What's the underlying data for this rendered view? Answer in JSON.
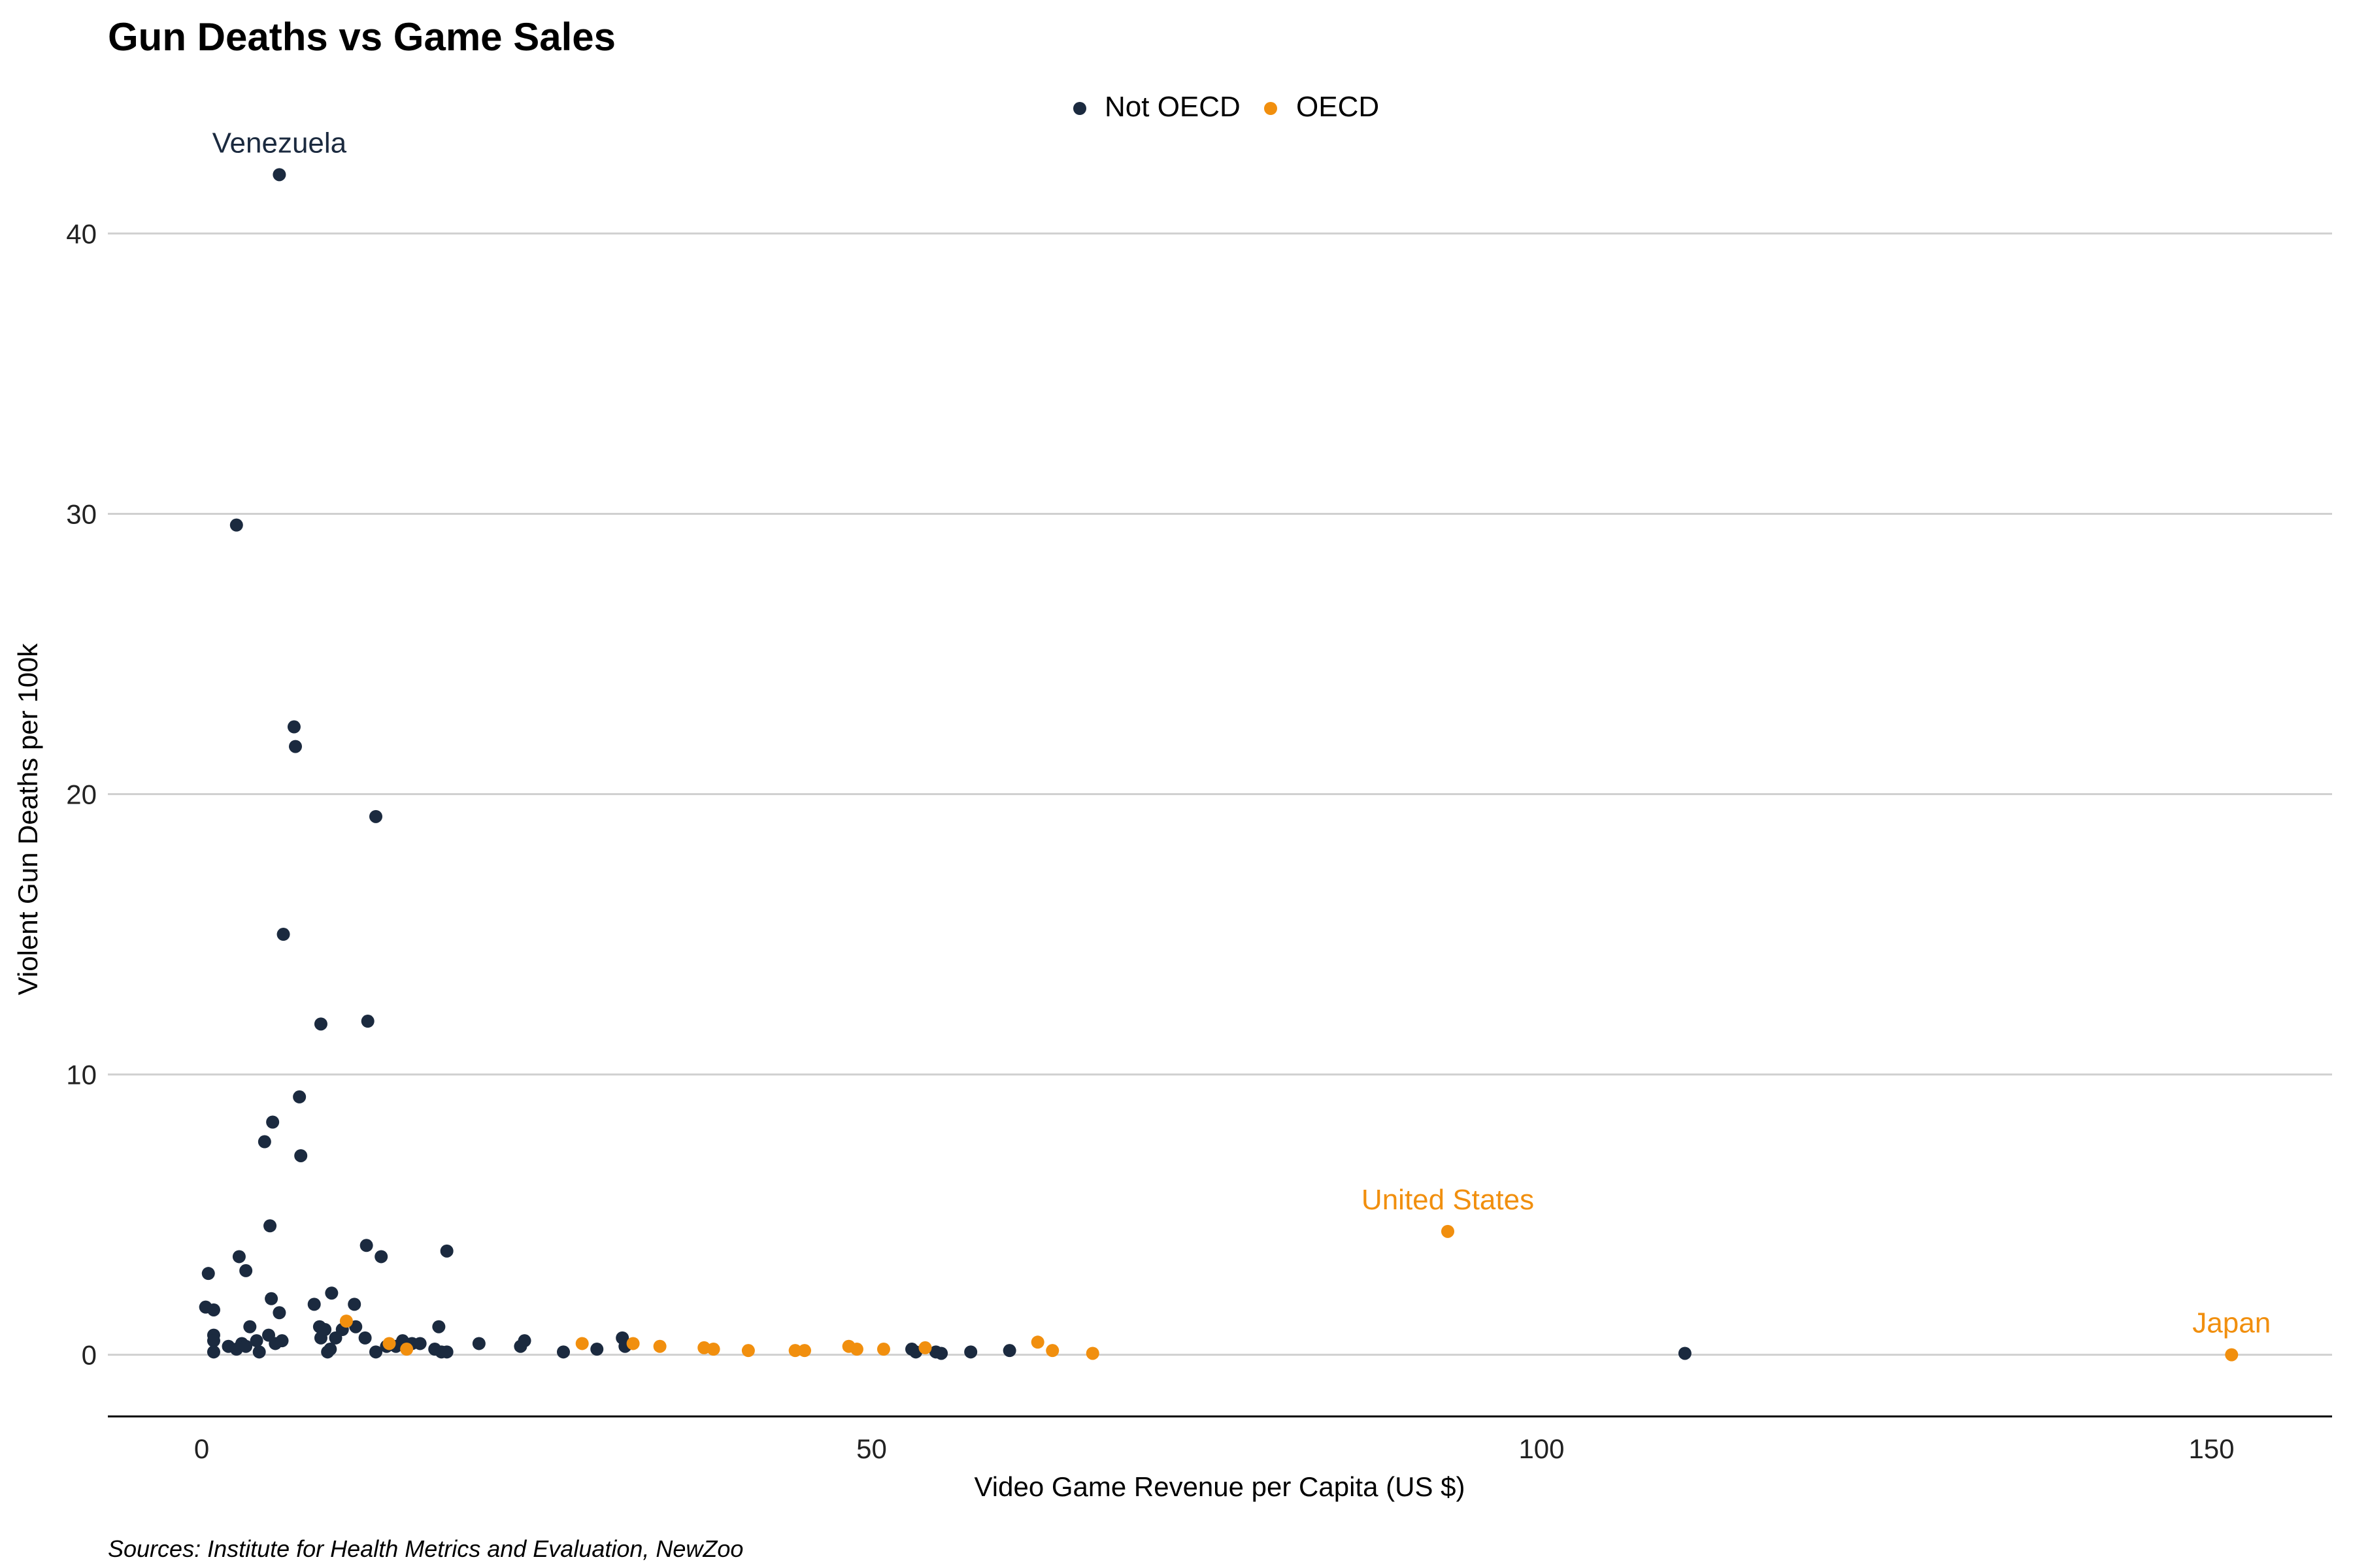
{
  "chart_data": {
    "type": "scatter",
    "title": "Gun Deaths vs Game Sales",
    "xlabel": "Video Game Revenue per Capita (US $)",
    "ylabel": "Violent Gun Deaths per 100k",
    "caption": "Sources: Institute for Health Metrics and Evaluation, NewZoo",
    "xlim": [
      -7,
      159
    ],
    "ylim": [
      -2.2,
      46
    ],
    "x_ticks": [
      0,
      50,
      100,
      150
    ],
    "y_ticks": [
      0,
      10,
      20,
      30,
      40
    ],
    "grid": "horizontal",
    "legend_position": "top",
    "colors": {
      "Not OECD": "#1b2a3f",
      "OECD": "#f18f0e"
    },
    "series": [
      {
        "name": "Not OECD",
        "points": [
          [
            5.8,
            42.1
          ],
          [
            2.6,
            29.6
          ],
          [
            6.9,
            22.4
          ],
          [
            7.0,
            21.7
          ],
          [
            13.0,
            19.2
          ],
          [
            6.1,
            15.0
          ],
          [
            8.9,
            11.8
          ],
          [
            12.4,
            11.9
          ],
          [
            7.3,
            9.2
          ],
          [
            5.3,
            8.3
          ],
          [
            4.7,
            7.6
          ],
          [
            7.4,
            7.1
          ],
          [
            5.1,
            4.6
          ],
          [
            12.3,
            3.9
          ],
          [
            13.4,
            3.5
          ],
          [
            18.3,
            3.7
          ],
          [
            2.8,
            3.5
          ],
          [
            3.3,
            3.0
          ],
          [
            0.5,
            2.9
          ],
          [
            0.3,
            1.7
          ],
          [
            0.9,
            1.6
          ],
          [
            5.2,
            2.0
          ],
          [
            5.8,
            1.5
          ],
          [
            9.7,
            2.2
          ],
          [
            11.4,
            1.8
          ],
          [
            8.4,
            1.8
          ],
          [
            0.9,
            0.7
          ],
          [
            0.9,
            0.5
          ],
          [
            0.9,
            0.1
          ],
          [
            2.0,
            0.3
          ],
          [
            2.6,
            0.2
          ],
          [
            3.0,
            0.4
          ],
          [
            3.3,
            0.3
          ],
          [
            3.6,
            1.0
          ],
          [
            4.1,
            0.5
          ],
          [
            4.3,
            0.1
          ],
          [
            5.0,
            0.7
          ],
          [
            5.5,
            0.4
          ],
          [
            6.0,
            0.5
          ],
          [
            8.8,
            1.0
          ],
          [
            8.9,
            0.6
          ],
          [
            9.2,
            0.9
          ],
          [
            9.4,
            0.1
          ],
          [
            9.6,
            0.2
          ],
          [
            10.0,
            0.6
          ],
          [
            10.5,
            0.9
          ],
          [
            11.5,
            1.0
          ],
          [
            12.2,
            0.6
          ],
          [
            13.0,
            0.1
          ],
          [
            13.8,
            0.3
          ],
          [
            14.5,
            0.3
          ],
          [
            15.0,
            0.5
          ],
          [
            15.7,
            0.4
          ],
          [
            16.3,
            0.4
          ],
          [
            17.4,
            0.2
          ],
          [
            17.7,
            1.0
          ],
          [
            17.9,
            0.1
          ],
          [
            18.3,
            0.1
          ],
          [
            20.7,
            0.4
          ],
          [
            23.8,
            0.3
          ],
          [
            24.1,
            0.5
          ],
          [
            27.0,
            0.1
          ],
          [
            29.5,
            0.2
          ],
          [
            31.4,
            0.6
          ],
          [
            31.6,
            0.3
          ],
          [
            53.0,
            0.2
          ],
          [
            53.3,
            0.1
          ],
          [
            54.8,
            0.1
          ],
          [
            55.2,
            0.05
          ],
          [
            57.4,
            0.1
          ],
          [
            60.3,
            0.15
          ],
          [
            110.7,
            0.05
          ]
        ]
      },
      {
        "name": "OECD",
        "points": [
          [
            10.8,
            1.2
          ],
          [
            14.0,
            0.4
          ],
          [
            15.3,
            0.2
          ],
          [
            28.4,
            0.4
          ],
          [
            32.2,
            0.4
          ],
          [
            34.2,
            0.3
          ],
          [
            37.5,
            0.25
          ],
          [
            38.2,
            0.2
          ],
          [
            40.8,
            0.15
          ],
          [
            44.3,
            0.15
          ],
          [
            45.0,
            0.15
          ],
          [
            48.3,
            0.3
          ],
          [
            48.9,
            0.2
          ],
          [
            50.9,
            0.2
          ],
          [
            54.0,
            0.25
          ],
          [
            62.4,
            0.45
          ],
          [
            63.5,
            0.15
          ],
          [
            66.5,
            0.05
          ],
          [
            93.0,
            4.4
          ],
          [
            151.5,
            0.0
          ]
        ]
      }
    ],
    "annotations": [
      {
        "label": "Venezuela",
        "x": 5.8,
        "y": 42.1,
        "series": "Not OECD"
      },
      {
        "label": "United States",
        "x": 93.0,
        "y": 4.4,
        "series": "OECD"
      },
      {
        "label": "Japan",
        "x": 151.5,
        "y": 0.0,
        "series": "OECD"
      }
    ]
  }
}
